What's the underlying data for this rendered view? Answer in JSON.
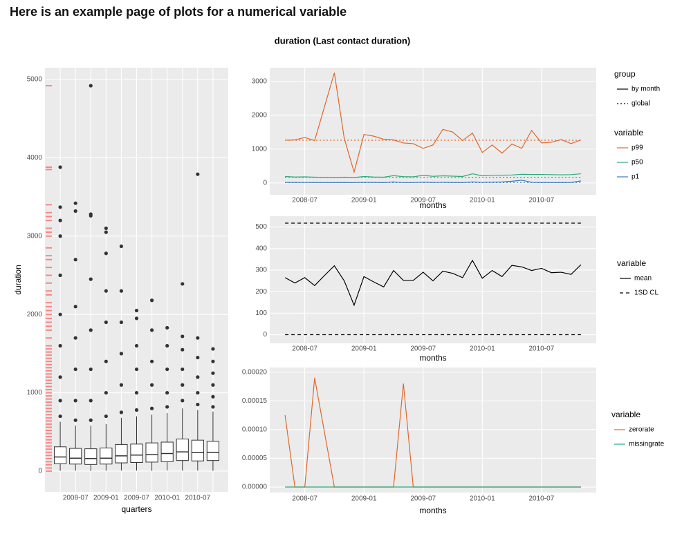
{
  "heading": "Here is an example page of plots for a numerical variable",
  "title": "duration (Last contact duration)",
  "chart_data": [
    {
      "type": "box",
      "xlabel": "quarters",
      "ylabel": "duration",
      "categories": [
        null,
        "2008-07",
        null,
        "2009-01",
        null,
        "2009-07",
        null,
        "2010-01",
        null,
        "2010-07",
        null
      ],
      "ylim": [
        -265,
        5150
      ],
      "yticks": [
        0,
        1000,
        2000,
        3000,
        4000,
        5000
      ],
      "grid": true,
      "box_color": "#333333",
      "rug_color": "#ff6b6b",
      "boxes": [
        {
          "min": 4,
          "q1": 95,
          "median": 180,
          "q3": 310,
          "max": 630,
          "outliers": [
            700,
            900,
            1200,
            1600,
            2000,
            2500,
            3000,
            3200,
            3370,
            3880
          ]
        },
        {
          "min": 5,
          "q1": 90,
          "median": 165,
          "q3": 290,
          "max": 580,
          "outliers": [
            650,
            900,
            1300,
            1700,
            2100,
            2700,
            3320,
            3420
          ]
        },
        {
          "min": 3,
          "q1": 85,
          "median": 160,
          "q3": 285,
          "max": 580,
          "outliers": [
            650,
            900,
            1300,
            1800,
            2450,
            3260,
            3280,
            4920
          ]
        },
        {
          "min": 5,
          "q1": 90,
          "median": 165,
          "q3": 295,
          "max": 600,
          "outliers": [
            700,
            1000,
            1400,
            1900,
            2300,
            2780,
            3050,
            3100
          ]
        },
        {
          "min": 6,
          "q1": 105,
          "median": 195,
          "q3": 340,
          "max": 680,
          "outliers": [
            750,
            1100,
            1500,
            1900,
            2300,
            2870
          ]
        },
        {
          "min": 6,
          "q1": 110,
          "median": 205,
          "q3": 345,
          "max": 700,
          "outliers": [
            780,
            1000,
            1300,
            1600,
            1950,
            2050
          ]
        },
        {
          "min": 4,
          "q1": 115,
          "median": 210,
          "q3": 360,
          "max": 720,
          "outliers": [
            800,
            1100,
            1400,
            1800,
            2180
          ]
        },
        {
          "min": 7,
          "q1": 120,
          "median": 225,
          "q3": 370,
          "max": 740,
          "outliers": [
            820,
            1000,
            1300,
            1600,
            1830
          ]
        },
        {
          "min": 5,
          "q1": 135,
          "median": 245,
          "q3": 410,
          "max": 800,
          "outliers": [
            900,
            1100,
            1300,
            1550,
            1720,
            2390
          ]
        },
        {
          "min": 6,
          "q1": 130,
          "median": 235,
          "q3": 395,
          "max": 780,
          "outliers": [
            850,
            1000,
            1200,
            1450,
            1700,
            3790
          ]
        },
        {
          "min": 4,
          "q1": 135,
          "median": 240,
          "q3": 380,
          "max": 760,
          "outliers": [
            820,
            950,
            1100,
            1250,
            1400,
            1560
          ]
        }
      ],
      "rug": [
        0,
        40,
        80,
        120,
        160,
        200,
        240,
        280,
        320,
        360,
        400,
        440,
        480,
        520,
        560,
        600,
        640,
        680,
        720,
        760,
        800,
        840,
        880,
        920,
        960,
        1000,
        1040,
        1080,
        1120,
        1160,
        1200,
        1240,
        1280,
        1320,
        1360,
        1400,
        1440,
        1480,
        1520,
        1560,
        1600,
        1700,
        1800,
        1850,
        1900,
        1950,
        2000,
        2050,
        2100,
        2150,
        2250,
        2300,
        2400,
        2500,
        2600,
        2700,
        2750,
        2850,
        3000,
        3050,
        3100,
        3200,
        3250,
        3300,
        3400,
        3850,
        3880,
        4920
      ]
    },
    {
      "type": "line",
      "xlabel": "months",
      "legend_title": "variable",
      "group_legend": {
        "title": "group",
        "labels": [
          "by month",
          "global"
        ],
        "styles": [
          "solid",
          "dotted"
        ]
      },
      "x": [
        "2008-05",
        "2008-06",
        "2008-07",
        "2008-08",
        "2008-09",
        "2008-10",
        "2008-11",
        "2008-12",
        "2009-01",
        "2009-02",
        "2009-03",
        "2009-04",
        "2009-05",
        "2009-06",
        "2009-07",
        "2009-08",
        "2009-09",
        "2009-10",
        "2009-11",
        "2009-12",
        "2010-01",
        "2010-02",
        "2010-03",
        "2010-04",
        "2010-05",
        "2010-06",
        "2010-07",
        "2010-08",
        "2010-09",
        "2010-10",
        "2010-11"
      ],
      "xticks": [
        "2008-07",
        "2009-01",
        "2009-07",
        "2010-01",
        "2010-07"
      ],
      "ylim": [
        -350,
        3400
      ],
      "yticks": [
        0,
        1000,
        2000,
        3000
      ],
      "grid": true,
      "series": [
        {
          "name": "p99",
          "color": "#e0672a",
          "global": 1260,
          "values": [
            1260,
            1270,
            1340,
            1250,
            2250,
            3250,
            1320,
            320,
            1430,
            1380,
            1290,
            1270,
            1180,
            1160,
            1020,
            1120,
            1580,
            1500,
            1250,
            1470,
            900,
            1120,
            880,
            1150,
            1020,
            1550,
            1180,
            1200,
            1280,
            1160,
            1270
          ]
        },
        {
          "name": "p50",
          "color": "#2ca87a",
          "global": 165,
          "values": [
            190,
            175,
            180,
            170,
            165,
            160,
            170,
            160,
            190,
            175,
            170,
            215,
            185,
            180,
            225,
            195,
            210,
            200,
            190,
            270,
            210,
            230,
            230,
            235,
            255,
            250,
            250,
            245,
            240,
            245,
            270
          ]
        },
        {
          "name": "p1",
          "color": "#3a78c2",
          "global": 10,
          "values": [
            20,
            15,
            18,
            12,
            10,
            12,
            15,
            8,
            20,
            15,
            12,
            30,
            10,
            10,
            25,
            15,
            20,
            15,
            12,
            30,
            20,
            25,
            30,
            50,
            80,
            20,
            15,
            10,
            12,
            15,
            60
          ]
        }
      ]
    },
    {
      "type": "line",
      "xlabel": "months",
      "legend_title": "variable",
      "x": [
        "2008-05",
        "2008-06",
        "2008-07",
        "2008-08",
        "2008-09",
        "2008-10",
        "2008-11",
        "2008-12",
        "2009-01",
        "2009-02",
        "2009-03",
        "2009-04",
        "2009-05",
        "2009-06",
        "2009-07",
        "2009-08",
        "2009-09",
        "2009-10",
        "2009-11",
        "2009-12",
        "2010-01",
        "2010-02",
        "2010-03",
        "2010-04",
        "2010-05",
        "2010-06",
        "2010-07",
        "2010-08",
        "2010-09",
        "2010-10",
        "2010-11"
      ],
      "xticks": [
        "2008-07",
        "2009-01",
        "2009-07",
        "2010-01",
        "2010-07"
      ],
      "ylim": [
        -40,
        550
      ],
      "yticks": [
        0,
        100,
        200,
        300,
        400,
        500
      ],
      "grid": true,
      "series": [
        {
          "name": "mean",
          "color": "#000000",
          "style": "solid",
          "values": [
            265,
            240,
            265,
            228,
            275,
            320,
            250,
            137,
            270,
            245,
            222,
            298,
            252,
            252,
            290,
            250,
            295,
            285,
            265,
            345,
            262,
            298,
            270,
            322,
            315,
            298,
            308,
            288,
            290,
            280,
            325
          ]
        },
        {
          "name": "1SD CL",
          "color": "#000000",
          "style": "dashed",
          "levels": [
            518,
            0
          ]
        }
      ]
    },
    {
      "type": "line",
      "xlabel": "months",
      "legend_title": "variable",
      "x": [
        "2008-05",
        "2008-06",
        "2008-07",
        "2008-08",
        "2008-09",
        "2008-10",
        "2008-11",
        "2008-12",
        "2009-01",
        "2009-02",
        "2009-03",
        "2009-04",
        "2009-05",
        "2009-06",
        "2009-07",
        "2009-08",
        "2009-09",
        "2009-10",
        "2009-11",
        "2009-12",
        "2010-01",
        "2010-02",
        "2010-03",
        "2010-04",
        "2010-05",
        "2010-06",
        "2010-07",
        "2010-08",
        "2010-09",
        "2010-10",
        "2010-11"
      ],
      "xticks": [
        "2008-07",
        "2009-01",
        "2009-07",
        "2010-01",
        "2010-07"
      ],
      "ylim": [
        -9.6e-06,
        0.000208
      ],
      "yticks": [
        {
          "value": 0,
          "label": "0.00000"
        },
        {
          "value": 5e-05,
          "label": "0.00005"
        },
        {
          "value": 0.0001,
          "label": "0.00010"
        },
        {
          "value": 0.00015,
          "label": "0.00015"
        },
        {
          "value": 0.0002,
          "label": "0.00020"
        }
      ],
      "grid": true,
      "series": [
        {
          "name": "zerorate",
          "color": "#e0672a",
          "values": [
            0.000125,
            0,
            0,
            0.00019,
            9.5e-05,
            0,
            0,
            0,
            0,
            0,
            0,
            0,
            0.00018,
            0,
            0,
            0,
            0,
            0,
            0,
            0,
            0,
            0,
            0,
            0,
            0,
            0,
            0,
            0,
            0,
            0,
            0
          ]
        },
        {
          "name": "missingrate",
          "color": "#2ca87a",
          "values": [
            0,
            0,
            0,
            0,
            0,
            0,
            0,
            0,
            0,
            0,
            0,
            0,
            0,
            0,
            0,
            0,
            0,
            0,
            0,
            0,
            0,
            0,
            0,
            0,
            0,
            0,
            0,
            0,
            0,
            0,
            0
          ]
        }
      ]
    }
  ]
}
